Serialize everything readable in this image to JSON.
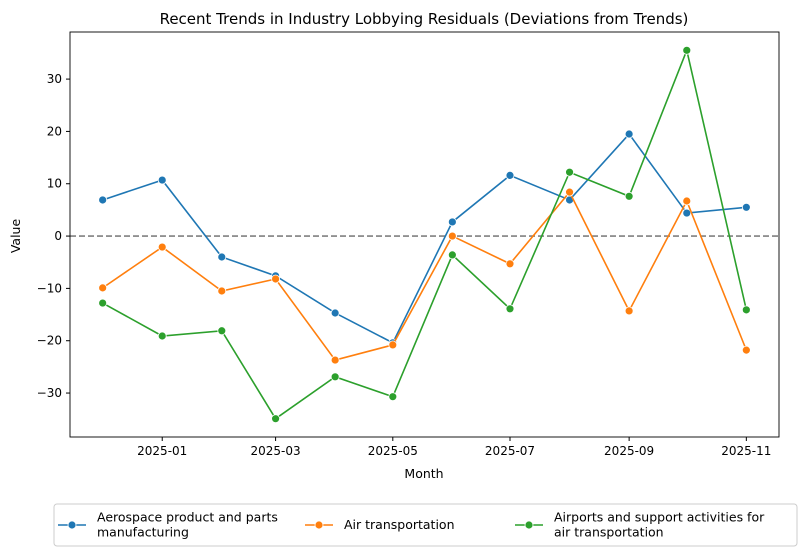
{
  "chart_data": {
    "type": "line",
    "title": "Recent Trends in Industry Lobbying Residuals (Deviations from Trends)",
    "xlabel": "Month",
    "ylabel": "Value",
    "x": [
      "2024-12-01",
      "2025-01-01",
      "2025-02-01",
      "2025-03-01",
      "2025-04-01",
      "2025-05-01",
      "2025-06-01",
      "2025-07-01",
      "2025-08-01",
      "2025-09-01",
      "2025-10-01",
      "2025-11-01"
    ],
    "x_ticks": [
      "2025-01",
      "2025-03",
      "2025-05",
      "2025-07",
      "2025-09",
      "2025-11"
    ],
    "y_ticks": [
      -30,
      -20,
      -10,
      0,
      10,
      20,
      30
    ],
    "ylim": [
      -38.4,
      39.0
    ],
    "xlim": [
      "2024-11-14",
      "2025-11-18"
    ],
    "reference_line": {
      "y": 0,
      "style": "dashed",
      "color": "#808080"
    },
    "grid": false,
    "legend_placement": "bottom-center",
    "series": [
      {
        "name": "Aerospace product and parts manufacturing",
        "legend_lines": [
          "Aerospace product and parts",
          "manufacturing"
        ],
        "color": "#1f77b4",
        "values": [
          6.9,
          10.7,
          -4.0,
          -7.6,
          -14.7,
          -20.4,
          2.7,
          11.6,
          6.9,
          19.5,
          4.4,
          5.5
        ]
      },
      {
        "name": "Air transportation",
        "legend_lines": [
          "Air transportation"
        ],
        "color": "#ff7f0e",
        "values": [
          -9.9,
          -2.1,
          -10.5,
          -8.2,
          -23.7,
          -20.8,
          0.0,
          -5.3,
          8.4,
          -14.3,
          6.7,
          -21.8
        ]
      },
      {
        "name": "Airports and support activities for air transportation",
        "legend_lines": [
          "Airports and support activities for",
          "air transportation"
        ],
        "color": "#2ca02c",
        "values": [
          -12.8,
          -19.1,
          -18.1,
          -34.9,
          -26.9,
          -30.7,
          -3.6,
          -13.9,
          12.2,
          7.6,
          35.5,
          -14.1
        ]
      }
    ]
  }
}
